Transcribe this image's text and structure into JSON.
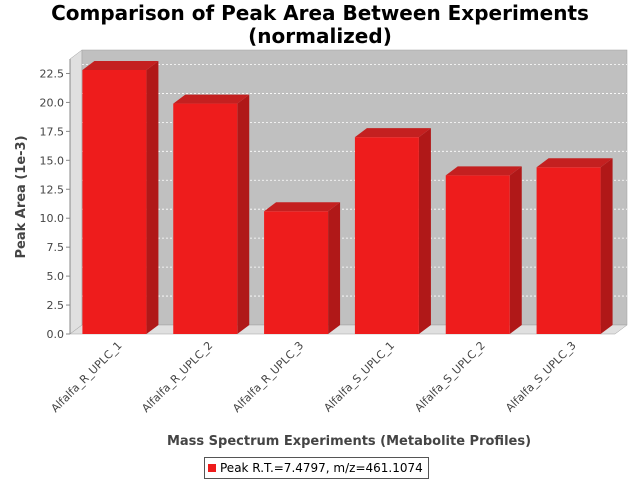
{
  "chart_data": {
    "type": "bar",
    "title": "Comparison of Peak Area Between Experiments",
    "subtitle": "(normalized)",
    "xlabel": "Mass Spectrum Experiments (Metabolite Profiles)",
    "ylabel": "Peak Area (1e-3)",
    "categories": [
      "Alfalfa_R_UPLC_1",
      "Alfalfa_R_UPLC_2",
      "Alfalfa_R_UPLC_3",
      "Alfalfa_S_UPLC_1",
      "Alfalfa_S_UPLC_2",
      "Alfalfa_S_UPLC_3"
    ],
    "series": [
      {
        "name": "Peak R.T.=7.4797, m/z=461.1074",
        "values": [
          22.8,
          19.9,
          10.6,
          17.0,
          13.7,
          14.4
        ]
      }
    ],
    "ylim": [
      0,
      23.75
    ],
    "yticks": [
      "0.0",
      "2.5",
      "5.0",
      "7.5",
      "10.0",
      "12.5",
      "15.0",
      "17.5",
      "20.0",
      "22.5"
    ],
    "grid": true,
    "legend_position": "bottom",
    "colors": {
      "bar": "#ee1c1c",
      "bar_top": "#c42020",
      "bar_side": "#b01818",
      "plot_bg": "#c0c0c0"
    }
  }
}
